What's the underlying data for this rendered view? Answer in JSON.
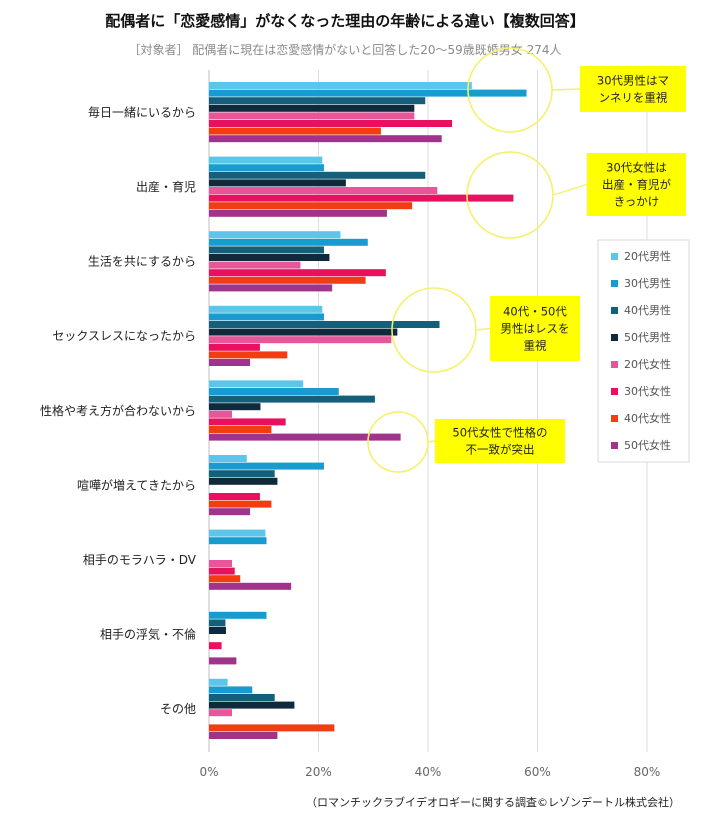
{
  "header": {
    "title": "配偶者に「恋愛感情」がなくなった理由の年齢による違い【複数回答】",
    "subtitle": "［対象者］ 配偶者に現在は恋愛感情がないと回答した20～59歳既婚男女 274人"
  },
  "source": "（ロマンチックラブイデオロギーに関する調査©レゾンデートル株式会社）",
  "colors": {
    "20代男性": "#5bc5ea",
    "30代男性": "#189cd0",
    "40代男性": "#145f7a",
    "50代男性": "#0f2a3d",
    "20代女性": "#e8569a",
    "30代女性": "#e8105f",
    "40代女性": "#f23d13",
    "50代女性": "#a0338b",
    "annotation_fill": "#ffff00",
    "annotation_circle": "#f6f06a"
  },
  "annotations": [
    {
      "lines": [
        "30代男性はマ",
        "ンネリを重視"
      ]
    },
    {
      "lines": [
        "30代女性は",
        "出産・育児が",
        "きっかけ"
      ]
    },
    {
      "lines": [
        "40代・50代",
        "男性はレスを",
        "重視"
      ]
    },
    {
      "lines": [
        "50代女性で性格の",
        "不一致が突出"
      ]
    }
  ],
  "chart_data": {
    "type": "bar",
    "orientation": "horizontal",
    "title": "配偶者に「恋愛感情」がなくなった理由の年齢による違い【複数回答】",
    "xlim": [
      0,
      80
    ],
    "xticks": [
      "0%",
      "20%",
      "40%",
      "60%",
      "80%"
    ],
    "grid": true,
    "legend_position": "right",
    "categories": [
      "毎日一緒にいるから",
      "出産・育児",
      "生活を共にするから",
      "セックスレスになったから",
      "性格や考え方が合わないから",
      "喧嘩が増えてきたから",
      "相手のモラハラ・DV",
      "相手の浮気・不倫",
      "その他"
    ],
    "series": [
      {
        "name": "20代男性",
        "values": [
          48,
          20.7,
          24,
          20.7,
          17.2,
          6.9,
          10.3,
          0,
          3.4
        ]
      },
      {
        "name": "30代男性",
        "values": [
          58,
          21,
          29,
          21,
          23.7,
          21,
          10.5,
          10.5,
          7.9
        ]
      },
      {
        "name": "40代男性",
        "values": [
          39.5,
          39.5,
          21,
          42.1,
          30.3,
          12,
          0,
          3,
          12
        ]
      },
      {
        "name": "50代男性",
        "values": [
          37.5,
          25,
          22,
          34.4,
          9.4,
          12.5,
          0,
          3.1,
          15.6
        ]
      },
      {
        "name": "20代女性",
        "values": [
          37.5,
          41.7,
          16.7,
          33.3,
          4.2,
          0,
          4.2,
          0,
          4.2
        ]
      },
      {
        "name": "30代女性",
        "values": [
          44.4,
          55.6,
          32.3,
          9.3,
          14,
          9.3,
          4.7,
          2.3,
          0
        ]
      },
      {
        "name": "40代女性",
        "values": [
          31.4,
          37.1,
          28.6,
          14.3,
          11.4,
          11.4,
          5.7,
          0,
          22.9
        ]
      },
      {
        "name": "50代女性",
        "values": [
          42.5,
          32.5,
          22.5,
          7.5,
          35,
          7.5,
          15,
          5,
          12.5
        ]
      }
    ]
  }
}
